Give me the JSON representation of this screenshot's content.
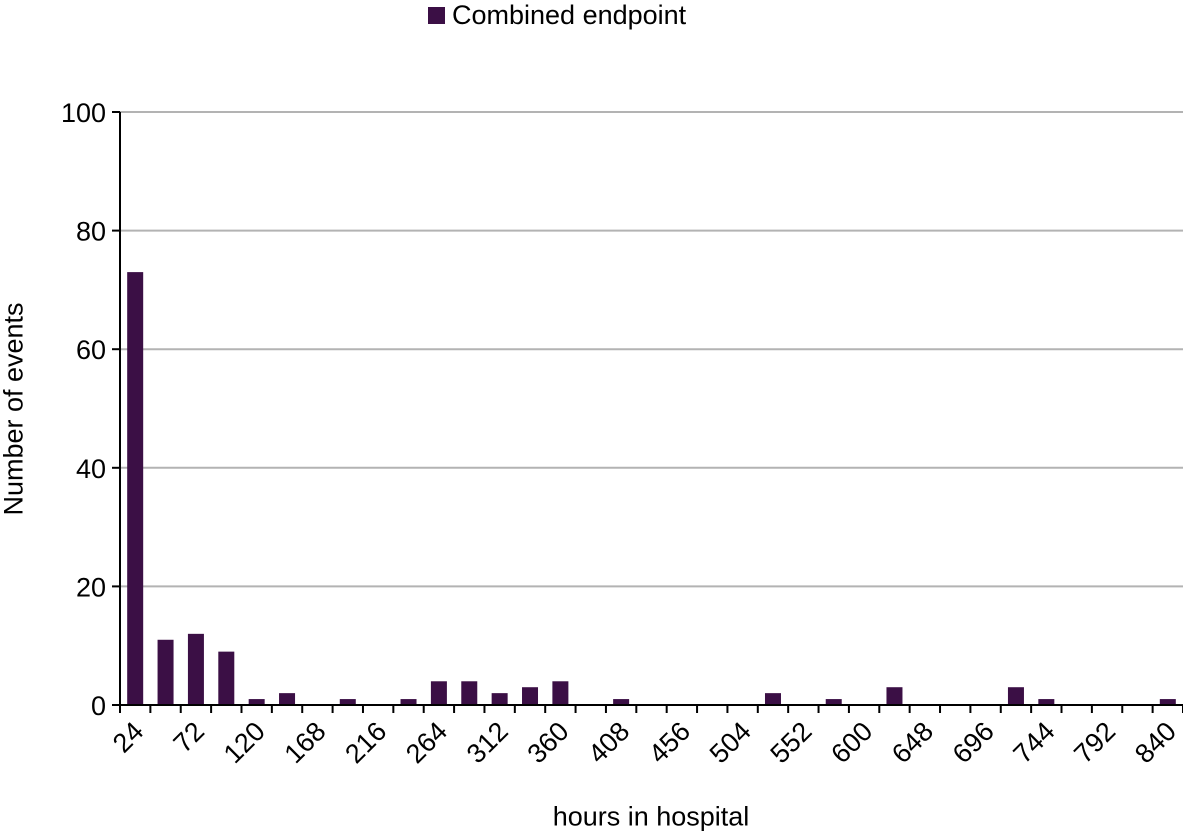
{
  "chart_data": {
    "type": "bar",
    "title": "",
    "xlabel": "hours in hospital",
    "ylabel": "Number of events",
    "ylim": [
      0,
      100
    ],
    "yticks": [
      0,
      20,
      40,
      60,
      80,
      100
    ],
    "xticks": [
      "24",
      "72",
      "120",
      "168",
      "216",
      "264",
      "312",
      "360",
      "408",
      "456",
      "504",
      "552",
      "600",
      "648",
      "696",
      "744",
      "792",
      "840"
    ],
    "categories": [
      24,
      48,
      72,
      96,
      120,
      144,
      168,
      192,
      216,
      240,
      264,
      288,
      312,
      336,
      360,
      384,
      408,
      432,
      456,
      480,
      504,
      528,
      552,
      576,
      600,
      624,
      648,
      672,
      696,
      720,
      744,
      768,
      792,
      816,
      840
    ],
    "series": [
      {
        "name": "Combined endpoint",
        "color": "#3b0f45",
        "values": [
          73,
          11,
          12,
          9,
          1,
          2,
          0,
          1,
          0,
          1,
          4,
          4,
          2,
          3,
          4,
          0,
          1,
          0,
          0,
          0,
          0,
          2,
          0,
          1,
          0,
          3,
          0,
          0,
          0,
          3,
          1,
          0,
          0,
          0,
          1
        ]
      }
    ],
    "grid": true,
    "legend_position": "top"
  }
}
